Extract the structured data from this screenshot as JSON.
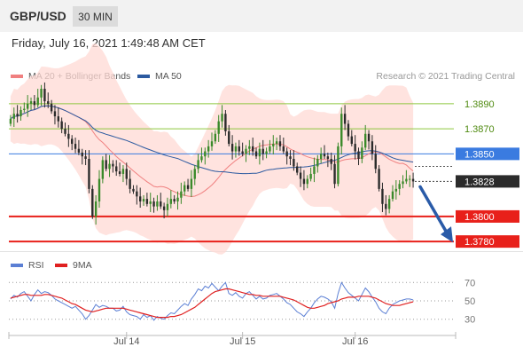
{
  "header": {
    "symbol": "GBP/USD",
    "timeframe": "30 MIN"
  },
  "timestamp": "Friday, July 16, 2021 1:49:48 AM CET",
  "legend": {
    "ma20": {
      "label": "MA 20 + Bollinger Bands",
      "color": "#f08080"
    },
    "ma50": {
      "label": "MA 50",
      "color": "#2c5aa0"
    },
    "rsi": {
      "label": "RSI",
      "color": "#5b7fd4"
    },
    "ma9": {
      "label": "9MA",
      "color": "#e02020"
    }
  },
  "research_label": "Research © 2021 Trading Central",
  "colors": {
    "resistance": "#8dc63f",
    "pivot": "#3a7be0",
    "support": "#e8201a",
    "arrow": "#2a5ba8",
    "bullish": "#3a8a2a",
    "bearish": "#2b2b2b",
    "band": "#ffd9d4"
  },
  "chart_data": [
    {
      "type": "line",
      "subtype": "candlestick",
      "x_ticks": [
        "Jul 14",
        "Jul 15",
        "Jul 16"
      ],
      "ylim": [
        1.3773,
        1.3902
      ],
      "current_price": "1.3828",
      "levels": [
        {
          "value": 1.389,
          "label": "1.3890",
          "kind": "resistance"
        },
        {
          "value": 1.387,
          "label": "1.3870",
          "kind": "resistance"
        },
        {
          "value": 1.385,
          "label": "1.3850",
          "kind": "pivot"
        },
        {
          "value": 1.38,
          "label": "1.3800",
          "kind": "support"
        },
        {
          "value": 1.378,
          "label": "1.3780",
          "kind": "support"
        }
      ],
      "close": [
        1.3878,
        1.3882,
        1.388,
        1.3885,
        1.3886,
        1.389,
        1.3892,
        1.3889,
        1.3895,
        1.3902,
        1.3892,
        1.389,
        1.3884,
        1.388,
        1.3876,
        1.387,
        1.3866,
        1.3862,
        1.3858,
        1.3854,
        1.3851,
        1.3848,
        1.3846,
        1.3822,
        1.38,
        1.3812,
        1.383,
        1.3845,
        1.3838,
        1.3842,
        1.384,
        1.3836,
        1.3834,
        1.3838,
        1.383,
        1.3822,
        1.382,
        1.3816,
        1.3812,
        1.3814,
        1.381,
        1.3812,
        1.3808,
        1.3812,
        1.3808,
        1.3805,
        1.381,
        1.3814,
        1.3812,
        1.3815,
        1.382,
        1.3825,
        1.3822,
        1.383,
        1.3838,
        1.3845,
        1.3848,
        1.3852,
        1.3856,
        1.386,
        1.3866,
        1.3876,
        1.3882,
        1.3868,
        1.3858,
        1.3852,
        1.3856,
        1.3852,
        1.385,
        1.3854,
        1.3856,
        1.3852,
        1.3848,
        1.3854,
        1.385,
        1.3852,
        1.3856,
        1.3858,
        1.386,
        1.3856,
        1.3852,
        1.3848,
        1.3846,
        1.384,
        1.3835,
        1.383,
        1.3826,
        1.383,
        1.3834,
        1.384,
        1.3846,
        1.385,
        1.3848,
        1.3846,
        1.3842,
        1.3826,
        1.3856,
        1.3882,
        1.3874,
        1.3864,
        1.3858,
        1.3852,
        1.3846,
        1.3855,
        1.3866,
        1.386,
        1.385,
        1.3838,
        1.3822,
        1.381,
        1.3806,
        1.3814,
        1.382,
        1.3822,
        1.3826,
        1.3828,
        1.383,
        1.383,
        1.3828
      ]
    },
    {
      "type": "line",
      "name": "RSI",
      "levels": [
        70,
        50,
        30
      ],
      "ylim": [
        22,
        78
      ],
      "rsi": [
        52,
        56,
        54,
        58,
        60,
        55,
        50,
        57,
        62,
        58,
        60,
        59,
        56,
        52,
        50,
        48,
        46,
        44,
        42,
        44,
        40,
        36,
        30,
        34,
        40,
        46,
        43,
        45,
        44,
        42,
        42,
        39,
        40,
        44,
        38,
        35,
        34,
        33,
        30,
        35,
        32,
        34,
        29,
        33,
        31,
        30,
        34,
        37,
        36,
        40,
        44,
        47,
        45,
        52,
        57,
        63,
        61,
        66,
        64,
        69,
        65,
        61,
        66,
        70,
        58,
        56,
        59,
        55,
        53,
        58,
        60,
        56,
        52,
        55,
        52,
        53,
        56,
        57,
        58,
        55,
        52,
        48,
        46,
        42,
        38,
        36,
        33,
        38,
        42,
        48,
        52,
        55,
        54,
        52,
        49,
        42,
        58,
        70,
        64,
        59,
        56,
        53,
        50,
        57,
        64,
        60,
        54,
        49,
        42,
        38,
        36,
        42,
        46,
        48,
        50,
        51,
        52,
        52,
        51
      ],
      "ma9": [
        53,
        54,
        55,
        56,
        57,
        57,
        56,
        56,
        56,
        56,
        57,
        57,
        56,
        55,
        54,
        53,
        51,
        49,
        47,
        46,
        44,
        42,
        40,
        39,
        38,
        39,
        40,
        41,
        42,
        42,
        42,
        42,
        42,
        42,
        41,
        40,
        39,
        38,
        37,
        36,
        35,
        34,
        33,
        32,
        32,
        32,
        32,
        33,
        33,
        34,
        35,
        37,
        39,
        41,
        43,
        46,
        49,
        52,
        55,
        58,
        60,
        61,
        62,
        63,
        63,
        62,
        61,
        60,
        59,
        58,
        57,
        57,
        56,
        56,
        55,
        55,
        55,
        55,
        55,
        55,
        54,
        53,
        52,
        51,
        49,
        47,
        45,
        43,
        42,
        42,
        43,
        44,
        45,
        47,
        48,
        49,
        50,
        52,
        53,
        54,
        54,
        54,
        55,
        55,
        55,
        55,
        54,
        53,
        51,
        49,
        47,
        46,
        45,
        45,
        45,
        46,
        47,
        48,
        49
      ]
    }
  ]
}
